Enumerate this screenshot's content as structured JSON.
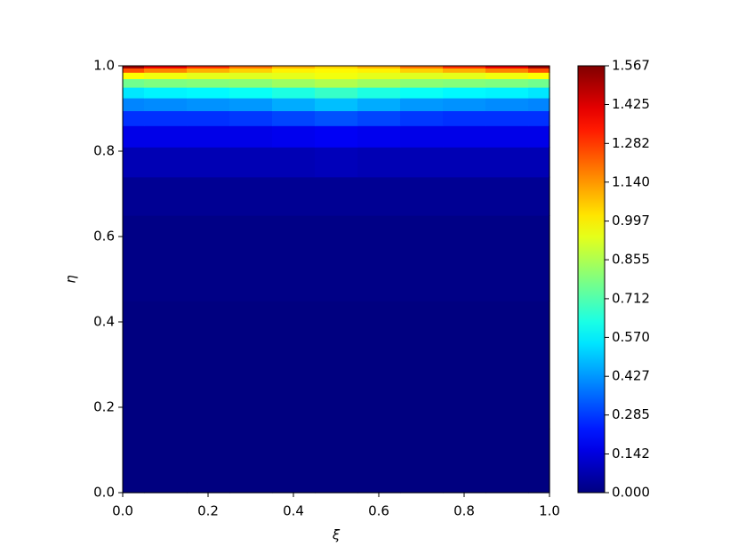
{
  "chart_data": {
    "type": "contour",
    "colormap": "jet",
    "xlabel": "ξ",
    "ylabel": "η",
    "x": [
      0,
      0.1,
      0.2,
      0.3,
      0.4,
      0.5,
      0.6,
      0.7,
      0.8,
      0.9,
      1.0
    ],
    "y": [
      0,
      0.3,
      0.6,
      0.7,
      0.78,
      0.84,
      0.88,
      0.91,
      0.94,
      0.96,
      0.98,
      0.99,
      1.0
    ],
    "z": [
      [
        0,
        0,
        0,
        0,
        0,
        0,
        0,
        0,
        0,
        0,
        0
      ],
      [
        0,
        0,
        0,
        0,
        0,
        0,
        0,
        0,
        0,
        0,
        0
      ],
      [
        0.01,
        0.01,
        0.01,
        0.01,
        0.01,
        0.01,
        0.01,
        0.01,
        0.01,
        0.01,
        0.01
      ],
      [
        0.03,
        0.03,
        0.03,
        0.03,
        0.03,
        0.03,
        0.03,
        0.03,
        0.03,
        0.03,
        0.03
      ],
      [
        0.08,
        0.08,
        0.08,
        0.08,
        0.08,
        0.09,
        0.08,
        0.08,
        0.08,
        0.08,
        0.08
      ],
      [
        0.16,
        0.16,
        0.16,
        0.16,
        0.17,
        0.18,
        0.17,
        0.16,
        0.16,
        0.16,
        0.16
      ],
      [
        0.27,
        0.27,
        0.27,
        0.28,
        0.3,
        0.32,
        0.3,
        0.28,
        0.27,
        0.27,
        0.27
      ],
      [
        0.4,
        0.41,
        0.42,
        0.43,
        0.46,
        0.49,
        0.46,
        0.43,
        0.42,
        0.41,
        0.4
      ],
      [
        0.55,
        0.57,
        0.58,
        0.6,
        0.63,
        0.67,
        0.63,
        0.6,
        0.58,
        0.57,
        0.55
      ],
      [
        0.76,
        0.78,
        0.79,
        0.8,
        0.83,
        0.86,
        0.83,
        0.8,
        0.79,
        0.78,
        0.76
      ],
      [
        0.98,
        0.96,
        0.94,
        0.93,
        0.94,
        0.96,
        0.94,
        0.93,
        0.94,
        0.96,
        0.98
      ],
      [
        1.25,
        1.17,
        1.1,
        1.05,
        1.0,
        0.99,
        1.0,
        1.05,
        1.1,
        1.17,
        1.25
      ],
      [
        1.52,
        1.4,
        1.3,
        1.2,
        1.1,
        1.05,
        1.1,
        1.2,
        1.3,
        1.4,
        1.52
      ]
    ],
    "xlim": [
      0,
      1.0
    ],
    "ylim": [
      0,
      1.0
    ],
    "xticks": [
      {
        "value": 0,
        "label": "0.0"
      },
      0.2,
      0.4,
      0.6,
      0.8,
      {
        "value": 1.0,
        "label": "1.0"
      }
    ],
    "yticks": [
      {
        "value": 0,
        "label": "0.0"
      },
      0.2,
      0.4,
      0.6,
      0.8,
      {
        "value": 1.0,
        "label": "1.0"
      }
    ],
    "clim": [
      0,
      1.567
    ],
    "cticks": [
      {
        "value": 0,
        "label": "0.000"
      },
      0.142,
      0.285,
      0.427,
      {
        "value": 0.57,
        "label": "0.570"
      },
      0.712,
      0.855,
      0.997,
      {
        "value": 1.14,
        "label": "1.140"
      },
      1.282,
      1.425,
      1.567
    ]
  }
}
